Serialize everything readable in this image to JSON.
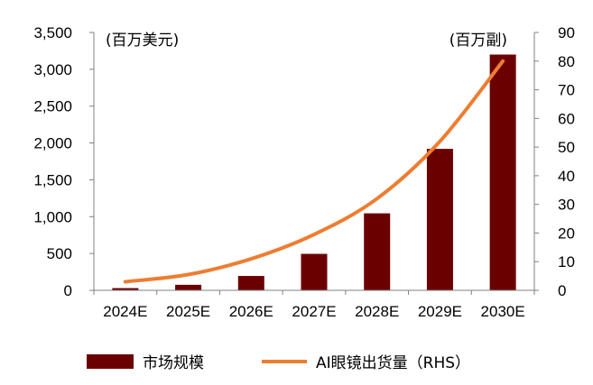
{
  "chart_data": {
    "type": "bar",
    "categories": [
      "2024E",
      "2025E",
      "2026E",
      "2027E",
      "2028E",
      "2029E",
      "2030E"
    ],
    "series": [
      {
        "name": "市场规模",
        "type": "bar",
        "axis": "left",
        "values": [
          30,
          75,
          195,
          495,
          1045,
          1920,
          3200
        ]
      },
      {
        "name": "AI眼镜出货量（RHS）",
        "type": "line",
        "axis": "right",
        "values": [
          3,
          5.5,
          11,
          19.5,
          32,
          52,
          80
        ]
      }
    ],
    "left_axis": {
      "unit_label": "(百万美元)",
      "ylim": [
        0,
        3500
      ],
      "ticks": [
        "0",
        "500",
        "1,000",
        "1,500",
        "2,000",
        "2,500",
        "3,000",
        "3,500"
      ]
    },
    "right_axis": {
      "unit_label": "(百万副)",
      "ylim": [
        0,
        90
      ],
      "ticks": [
        "0",
        "10",
        "20",
        "30",
        "40",
        "50",
        "60",
        "70",
        "80",
        "90"
      ]
    },
    "grid": false,
    "legend_position": "bottom",
    "colors": {
      "bar": "#6b0000",
      "line": "#ed7d31",
      "axis": "#808080"
    }
  }
}
